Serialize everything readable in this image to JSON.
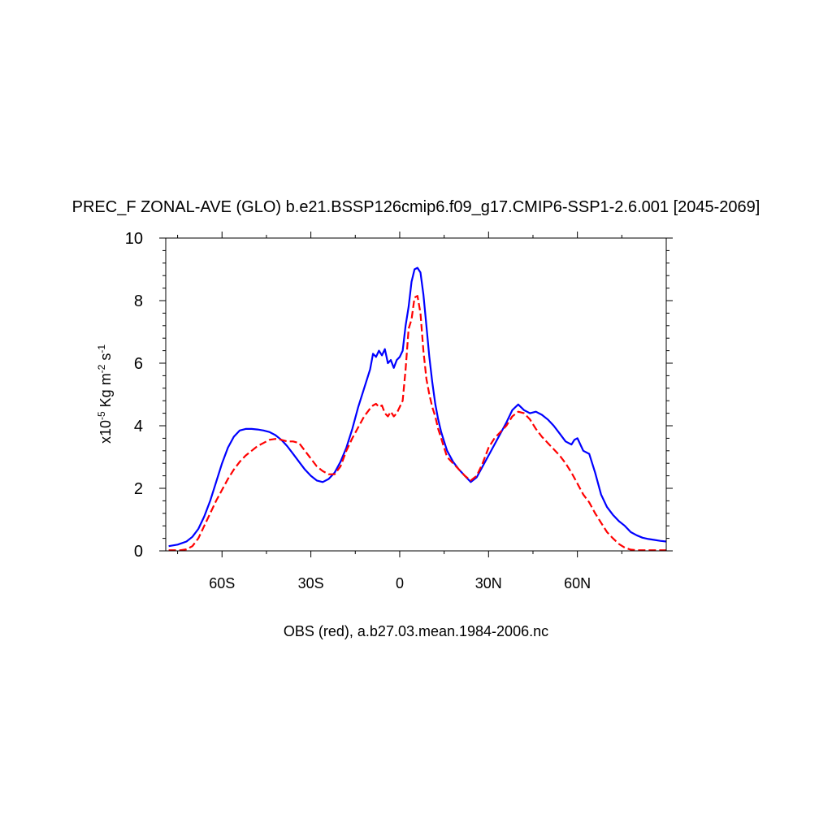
{
  "chart_data": {
    "type": "line",
    "title": "PREC_F ZONAL-AVE (GLO) b.e21.BSSP126cmip6.f09_g17.CMIP6-SSP1-2.6.001 [2045-2069]",
    "xlabel": "OBS (red), a.b27.03.mean.1984-2006.nc",
    "ylabel": {
      "prefix": "x10",
      "exp": "-5",
      "unit1": " Kg m",
      "exp2": "-2",
      "unit2": " s",
      "exp3": "-1"
    },
    "xlim": [
      -79,
      90
    ],
    "ylim": [
      0,
      10
    ],
    "x_ticks": [
      {
        "value": -60,
        "label": "60S"
      },
      {
        "value": -30,
        "label": "30S"
      },
      {
        "value": 0,
        "label": "0"
      },
      {
        "value": 30,
        "label": "30N"
      },
      {
        "value": 60,
        "label": "60N"
      }
    ],
    "y_ticks": [
      {
        "value": 0,
        "label": "0"
      },
      {
        "value": 2,
        "label": "2"
      },
      {
        "value": 4,
        "label": "4"
      },
      {
        "value": 6,
        "label": "6"
      },
      {
        "value": 8,
        "label": "8"
      },
      {
        "value": 10,
        "label": "10"
      }
    ],
    "series": [
      {
        "name": "Model (b.e21.BSSP126cmip6)",
        "color": "#0000ff",
        "dash": "solid",
        "x": [
          -78,
          -75,
          -72,
          -70,
          -68,
          -66,
          -64,
          -62,
          -60,
          -58,
          -56,
          -54,
          -52,
          -50,
          -48,
          -46,
          -44,
          -42,
          -40,
          -38,
          -36,
          -34,
          -32,
          -30,
          -28,
          -26,
          -24,
          -22,
          -20,
          -18,
          -16,
          -14,
          -12,
          -10,
          -9,
          -8,
          -7,
          -6,
          -5,
          -4,
          -3,
          -2,
          -1,
          0,
          1,
          2,
          3,
          4,
          5,
          6,
          7,
          8,
          9,
          10,
          11,
          12,
          13,
          14,
          15,
          16,
          18,
          20,
          22,
          24,
          26,
          28,
          30,
          32,
          34,
          36,
          38,
          40,
          42,
          44,
          46,
          48,
          50,
          52,
          54,
          56,
          58,
          59,
          60,
          61,
          62,
          64,
          66,
          68,
          70,
          72,
          74,
          76,
          78,
          80,
          82,
          84,
          86,
          88,
          90
        ],
        "y": [
          0.15,
          0.2,
          0.3,
          0.45,
          0.7,
          1.1,
          1.6,
          2.2,
          2.8,
          3.3,
          3.65,
          3.85,
          3.9,
          3.9,
          3.88,
          3.85,
          3.8,
          3.7,
          3.55,
          3.35,
          3.1,
          2.85,
          2.6,
          2.4,
          2.25,
          2.2,
          2.3,
          2.5,
          2.85,
          3.3,
          3.9,
          4.6,
          5.2,
          5.8,
          6.3,
          6.2,
          6.4,
          6.25,
          6.45,
          6.0,
          6.1,
          5.85,
          6.1,
          6.2,
          6.4,
          7.2,
          7.8,
          8.6,
          9.0,
          9.05,
          8.9,
          8.2,
          7.2,
          6.2,
          5.4,
          4.7,
          4.2,
          3.8,
          3.5,
          3.2,
          2.85,
          2.6,
          2.4,
          2.2,
          2.35,
          2.7,
          3.05,
          3.4,
          3.75,
          4.1,
          4.5,
          4.68,
          4.5,
          4.4,
          4.45,
          4.35,
          4.2,
          4.0,
          3.75,
          3.5,
          3.4,
          3.55,
          3.6,
          3.4,
          3.2,
          3.1,
          2.5,
          1.8,
          1.4,
          1.15,
          0.95,
          0.8,
          0.6,
          0.5,
          0.42,
          0.38,
          0.35,
          0.32,
          0.3
        ]
      },
      {
        "name": "OBS",
        "color": "#ff0000",
        "dash": "dashed",
        "x": [
          -78,
          -74,
          -72,
          -70,
          -68,
          -66,
          -64,
          -62,
          -60,
          -58,
          -56,
          -54,
          -52,
          -50,
          -48,
          -46,
          -44,
          -42,
          -40,
          -38,
          -36,
          -34,
          -32,
          -30,
          -28,
          -26,
          -24,
          -22,
          -20,
          -18,
          -16,
          -14,
          -12,
          -10,
          -9,
          -8,
          -7,
          -6,
          -5,
          -4,
          -3,
          -2,
          -1,
          0,
          1,
          2,
          3,
          4,
          5,
          6,
          7,
          8,
          9,
          10,
          11,
          12,
          13,
          14,
          15,
          16,
          18,
          20,
          22,
          24,
          26,
          28,
          30,
          32,
          34,
          36,
          38,
          40,
          42,
          44,
          46,
          48,
          50,
          52,
          54,
          56,
          58,
          60,
          62,
          64,
          66,
          68,
          70,
          72,
          74,
          76,
          78,
          80,
          82,
          84,
          86,
          88,
          90
        ],
        "y": [
          0.02,
          0.02,
          0.05,
          0.15,
          0.4,
          0.8,
          1.2,
          1.6,
          1.95,
          2.3,
          2.6,
          2.85,
          3.05,
          3.2,
          3.35,
          3.45,
          3.55,
          3.58,
          3.55,
          3.5,
          3.5,
          3.45,
          3.2,
          2.95,
          2.7,
          2.55,
          2.45,
          2.45,
          2.7,
          3.2,
          3.6,
          3.95,
          4.3,
          4.55,
          4.65,
          4.7,
          4.6,
          4.65,
          4.4,
          4.3,
          4.45,
          4.3,
          4.4,
          4.6,
          4.8,
          5.8,
          7.1,
          7.4,
          8.1,
          8.15,
          7.6,
          6.4,
          5.5,
          5.0,
          4.6,
          4.3,
          3.9,
          3.6,
          3.3,
          3.0,
          2.8,
          2.6,
          2.4,
          2.25,
          2.4,
          2.8,
          3.3,
          3.6,
          3.8,
          4.0,
          4.3,
          4.45,
          4.4,
          4.2,
          3.9,
          3.65,
          3.45,
          3.25,
          3.05,
          2.8,
          2.5,
          2.15,
          1.8,
          1.55,
          1.2,
          0.9,
          0.6,
          0.4,
          0.22,
          0.1,
          0.04,
          0.02,
          0.02,
          0.02,
          0.02,
          0.02,
          0.02
        ]
      }
    ]
  }
}
